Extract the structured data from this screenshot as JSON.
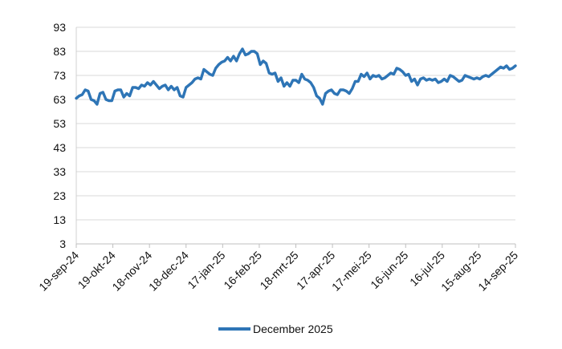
{
  "chart_data": {
    "type": "line",
    "title": "",
    "xlabel": "",
    "ylabel": "",
    "ylim": [
      3,
      93
    ],
    "yticks": [
      3,
      13,
      23,
      33,
      43,
      53,
      63,
      73,
      83,
      93
    ],
    "grid": "horizontal",
    "legend_position": "bottom-center",
    "x_tick_labels": [
      "19-sep-24",
      "19-okt-24",
      "18-nov-24",
      "18-dec-24",
      "17-jan-25",
      "16-feb-25",
      "18-mrt-25",
      "17-apr-25",
      "17-mei-25",
      "16-jun-25",
      "16-jul-25",
      "15-aug-25",
      "14-sep-25"
    ],
    "series": [
      {
        "name": "December 2025",
        "color": "#2e75b6",
        "values": [
          63.5,
          64.5,
          65,
          67,
          66.5,
          63,
          62.5,
          61,
          65.5,
          66,
          63,
          62.5,
          62.5,
          66.5,
          67,
          67,
          64,
          65.5,
          64.5,
          68,
          68,
          67.5,
          69,
          68.5,
          70,
          69,
          70.5,
          69,
          67.5,
          68.5,
          69,
          67,
          68.5,
          67,
          68,
          64.5,
          64,
          68,
          69,
          70,
          71.5,
          72,
          71.5,
          75.5,
          74.5,
          73.5,
          73,
          76,
          77.5,
          78.5,
          79,
          80.5,
          79,
          81,
          79,
          82,
          84,
          81.5,
          82,
          83,
          83,
          82,
          77.5,
          79,
          78,
          74,
          73.5,
          74,
          70.5,
          72,
          68.5,
          70,
          68.5,
          71,
          71,
          70,
          73.5,
          71.5,
          71,
          70,
          68,
          64.5,
          63.5,
          61,
          65.5,
          66.5,
          67,
          65.5,
          65,
          67,
          67,
          66.5,
          65.5,
          67.5,
          70.5,
          70.5,
          73.5,
          72.5,
          74,
          71.5,
          73,
          72.5,
          73,
          71.5,
          72,
          73,
          74,
          73.5,
          76,
          75.5,
          74.5,
          73,
          73.5,
          70.5,
          71.5,
          69,
          71.5,
          72,
          71,
          71.5,
          71,
          71.5,
          70,
          70.5,
          71.5,
          70.5,
          73,
          72.5,
          71.5,
          70.5,
          71,
          73,
          72.5,
          72,
          71.5,
          72,
          71.5,
          72.5,
          73,
          72.5,
          73.5,
          74.5,
          75.5,
          76.5,
          76,
          77,
          75.5,
          76,
          77
        ]
      }
    ]
  }
}
